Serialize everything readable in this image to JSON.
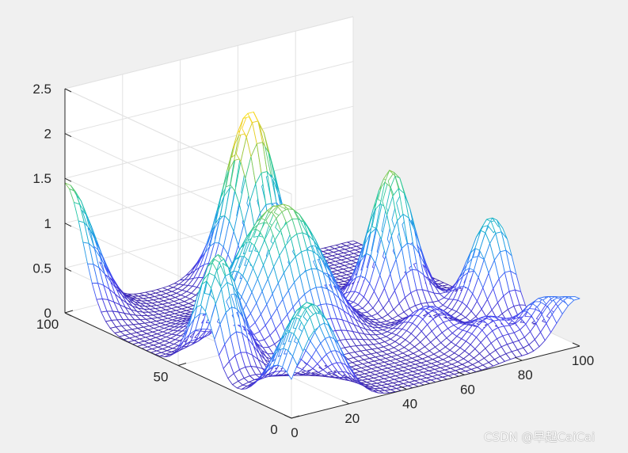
{
  "colors": {
    "background": "#f0f0f0",
    "axes": "#ffffff",
    "grid": "#e2e2e2",
    "axis_line": "#262626",
    "colormap": [
      "#3e26a8",
      "#4743f0",
      "#2e84f7",
      "#17acd5",
      "#27c9a0",
      "#a1c93d",
      "#f8d227",
      "#f9fb15"
    ]
  },
  "chart_data": {
    "type": "mesh",
    "title": "",
    "xlabel": "",
    "ylabel": "",
    "zlabel": "",
    "xlim": [
      0,
      100
    ],
    "ylim": [
      0,
      100
    ],
    "zlim": [
      0,
      2.5
    ],
    "grid": true,
    "view": "3-D mesh, default MATLAB azimuth/elevation",
    "mesh_resolution": 51,
    "x_ticks": [
      0,
      20,
      40,
      60,
      80,
      100
    ],
    "y_ticks": [
      0,
      50,
      100
    ],
    "z_ticks": [
      0,
      0.5,
      1,
      1.5,
      2,
      2.5
    ],
    "x_tick_labels": [
      "0",
      "20",
      "40",
      "60",
      "80",
      "100"
    ],
    "y_tick_labels": [
      "0",
      "50",
      "100"
    ],
    "z_tick_labels": [
      "0",
      "0.5",
      "1",
      "1.5",
      "2",
      "2.5"
    ],
    "peaks": [
      {
        "x": 0,
        "y": 100,
        "height": 1.45,
        "width": 8
      },
      {
        "x": 6,
        "y": 40,
        "height": 1.3,
        "width": 6
      },
      {
        "x": 30,
        "y": 55,
        "height": 0.85,
        "width": 9
      },
      {
        "x": 42,
        "y": 50,
        "height": 1.05,
        "width": 9
      },
      {
        "x": 10,
        "y": 5,
        "height": 1.15,
        "width": 8
      },
      {
        "x": 55,
        "y": 88,
        "height": 1.95,
        "width": 7
      },
      {
        "x": 78,
        "y": 55,
        "height": 1.5,
        "width": 6
      },
      {
        "x": 97,
        "y": 35,
        "height": 1.05,
        "width": 6
      },
      {
        "x": 78,
        "y": 12,
        "height": 0.35,
        "width": 6
      },
      {
        "x": 92,
        "y": 8,
        "height": 0.4,
        "width": 5
      },
      {
        "x": 100,
        "y": 0,
        "height": 0.5,
        "width": 6
      },
      {
        "x": 70,
        "y": 28,
        "height": 0.35,
        "width": 6
      }
    ]
  },
  "watermark": "CSDN @早起CaiCai"
}
